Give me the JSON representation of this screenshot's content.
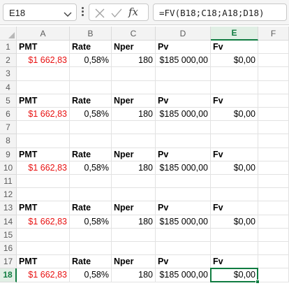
{
  "formula_bar": {
    "name_box": "E18",
    "formula": "=FV(B18;C18;A18;D18)"
  },
  "grid": {
    "columns": [
      "A",
      "B",
      "C",
      "D",
      "E",
      "F"
    ],
    "active_column": "E",
    "active_row": "18",
    "rows": [
      {
        "num": "1",
        "kind": "header",
        "cells": [
          "PMT",
          "Rate",
          "Nper",
          "Pv",
          "Fv"
        ]
      },
      {
        "num": "2",
        "kind": "values",
        "cells": [
          "$1 662,83",
          "0,58%",
          "180",
          "$185 000,00",
          "$0,00"
        ]
      },
      {
        "num": "3",
        "kind": "empty",
        "cells": []
      },
      {
        "num": "4",
        "kind": "empty",
        "cells": []
      },
      {
        "num": "5",
        "kind": "header",
        "cells": [
          "PMT",
          "Rate",
          "Nper",
          "Pv",
          "Fv"
        ]
      },
      {
        "num": "6",
        "kind": "values",
        "cells": [
          "$1 662,83",
          "0,58%",
          "180",
          "$185 000,00",
          "$0,00"
        ]
      },
      {
        "num": "7",
        "kind": "empty",
        "cells": []
      },
      {
        "num": "8",
        "kind": "empty",
        "cells": []
      },
      {
        "num": "9",
        "kind": "header",
        "cells": [
          "PMT",
          "Rate",
          "Nper",
          "Pv",
          "Fv"
        ]
      },
      {
        "num": "10",
        "kind": "values",
        "cells": [
          "$1 662,83",
          "0,58%",
          "180",
          "$185 000,00",
          "$0,00"
        ]
      },
      {
        "num": "11",
        "kind": "empty",
        "cells": []
      },
      {
        "num": "12",
        "kind": "empty",
        "cells": []
      },
      {
        "num": "13",
        "kind": "header",
        "cells": [
          "PMT",
          "Rate",
          "Nper",
          "Pv",
          "Fv"
        ]
      },
      {
        "num": "14",
        "kind": "values",
        "cells": [
          "$1 662,83",
          "0,58%",
          "180",
          "$185 000,00",
          "$0,00"
        ]
      },
      {
        "num": "15",
        "kind": "empty",
        "cells": []
      },
      {
        "num": "16",
        "kind": "empty",
        "cells": []
      },
      {
        "num": "17",
        "kind": "header",
        "cells": [
          "PMT",
          "Rate",
          "Nper",
          "Pv",
          "Fv"
        ]
      },
      {
        "num": "18",
        "kind": "values",
        "cells": [
          "$1 662,83",
          "0,58%",
          "180",
          "$185 000,00",
          "$0,00"
        ]
      }
    ]
  },
  "colors": {
    "negative_value": "#e81010",
    "selection_accent": "#107c41"
  },
  "icons": {
    "name_box_dropdown": "chevron-down-icon",
    "cancel": "close-icon",
    "enter": "check-icon",
    "insert_function": "fx-icon",
    "more": "more-vertical-icon"
  }
}
